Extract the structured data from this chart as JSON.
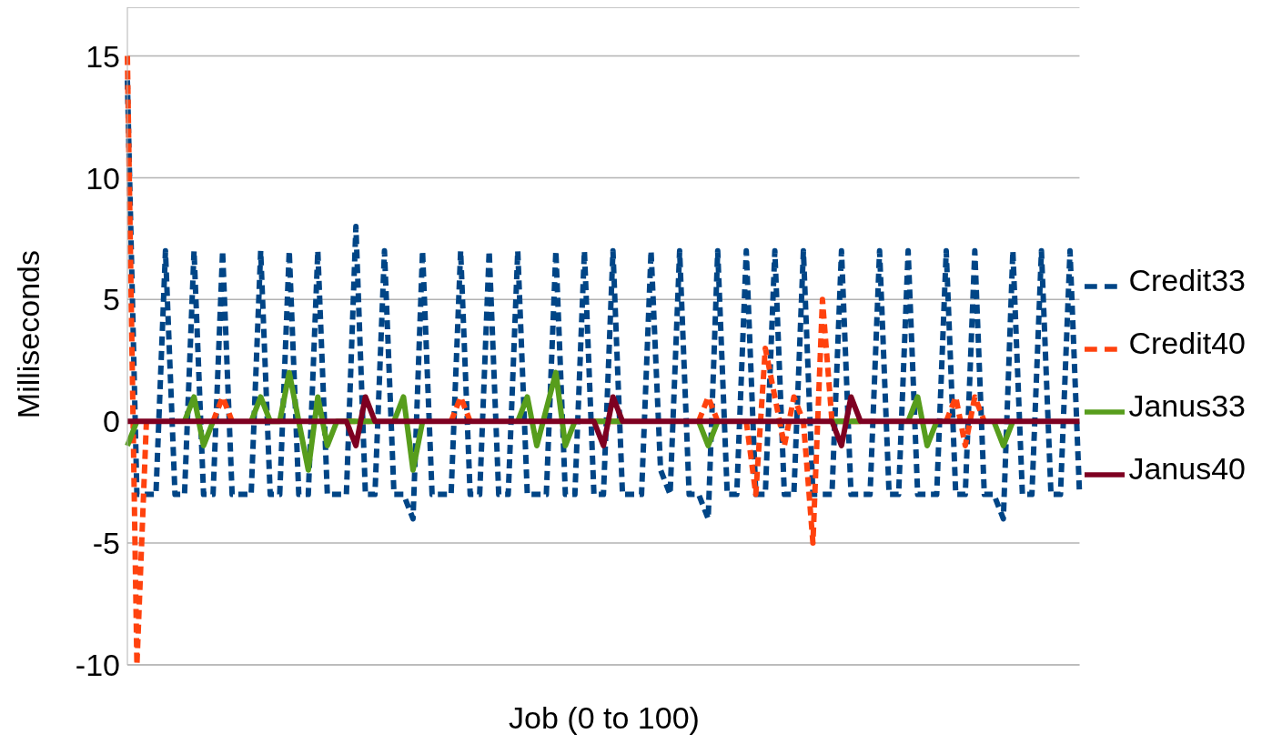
{
  "chart_data": {
    "type": "line",
    "xlabel": "Job (0 to 100)",
    "ylabel": "Milliseconds",
    "categories": [
      null,
      null,
      null,
      null,
      null,
      null,
      null,
      null,
      null,
      null,
      null,
      null,
      null,
      null,
      null,
      null,
      null,
      null,
      null,
      null,
      null,
      null,
      null,
      null,
      null,
      null,
      null,
      null,
      null,
      null,
      null,
      null,
      null,
      null,
      null,
      null,
      null,
      null,
      null,
      null,
      null,
      null,
      null,
      null,
      null,
      null,
      null,
      null,
      null,
      null,
      null,
      null,
      null,
      null,
      null,
      null,
      null,
      null,
      null,
      null,
      null,
      null,
      null,
      null,
      null,
      null,
      null,
      null,
      null,
      null,
      null,
      null,
      null,
      null,
      null,
      null,
      null,
      null,
      null,
      null,
      null,
      null,
      null,
      null,
      null,
      null,
      null,
      null,
      null,
      null,
      null,
      null,
      null,
      null,
      null,
      null,
      null,
      null,
      null,
      null,
      null
    ],
    "series": [
      {
        "name": "Credit33",
        "color": "#004586",
        "line_style": "dashed",
        "values": [
          14,
          -3,
          -3,
          -3,
          7,
          -3,
          -3,
          7,
          -3,
          -3,
          7,
          -3,
          -3,
          -3,
          7,
          -3,
          -3,
          7,
          -3,
          -3,
          7,
          -3,
          -3,
          -3,
          8,
          -3,
          -3,
          7,
          -3,
          -3,
          -4,
          7,
          -3,
          -3,
          -3,
          7,
          -3,
          -3,
          7,
          -3,
          -3,
          7,
          -3,
          -3,
          -3,
          7,
          -3,
          -3,
          7,
          -3,
          -3,
          7,
          -3,
          -3,
          -3,
          7,
          -2,
          -3,
          7,
          -3,
          -3,
          -4,
          7,
          -3,
          -3,
          7,
          -3,
          -3,
          7,
          -3,
          -3,
          7,
          -3,
          -3,
          -3,
          7,
          -3,
          -3,
          -3,
          7,
          -3,
          -3,
          7,
          -3,
          -3,
          -3,
          7,
          -3,
          -3,
          7,
          -3,
          -3,
          -4,
          7,
          -3,
          -3,
          7,
          -3,
          -3,
          7,
          -3
        ]
      },
      {
        "name": "Credit40",
        "color": "#ff420e",
        "line_style": "dashed",
        "values": [
          15,
          -10,
          0,
          null,
          null,
          null,
          null,
          null,
          null,
          0,
          1,
          0,
          null,
          null,
          null,
          null,
          null,
          null,
          null,
          null,
          null,
          null,
          null,
          0,
          0,
          0,
          0,
          null,
          null,
          null,
          null,
          null,
          null,
          null,
          0,
          1,
          0,
          null,
          null,
          null,
          null,
          null,
          null,
          null,
          null,
          null,
          null,
          null,
          null,
          0,
          0,
          0,
          0,
          null,
          null,
          null,
          null,
          null,
          null,
          null,
          0,
          1,
          0,
          null,
          null,
          0,
          -3,
          3,
          1,
          -1,
          1,
          0,
          -5,
          5,
          0,
          0,
          0,
          0,
          null,
          null,
          null,
          null,
          null,
          null,
          null,
          null,
          0,
          1,
          -1,
          1,
          0,
          null,
          null,
          null,
          null,
          null,
          null,
          null,
          null,
          null,
          null
        ]
      },
      {
        "name": "Janus33",
        "color": "#579d1c",
        "line_style": "solid",
        "values": [
          -1,
          0,
          null,
          null,
          null,
          null,
          0,
          1,
          -1,
          0,
          null,
          null,
          null,
          0,
          1,
          0,
          0,
          2,
          0,
          -2,
          1,
          -1,
          0,
          0,
          0,
          0,
          0,
          null,
          0,
          1,
          -2,
          0,
          null,
          null,
          null,
          null,
          null,
          null,
          null,
          null,
          null,
          0,
          1,
          -1,
          0.5,
          2,
          -1,
          0,
          null,
          0,
          0,
          0,
          0,
          null,
          null,
          null,
          null,
          null,
          null,
          null,
          0,
          -1,
          0,
          null,
          null,
          null,
          null,
          null,
          null,
          null,
          null,
          null,
          null,
          null,
          0,
          0,
          0,
          0,
          null,
          null,
          null,
          null,
          0,
          1,
          -1,
          0,
          null,
          null,
          null,
          null,
          null,
          0,
          -1,
          0,
          null,
          null,
          null,
          null,
          null,
          null,
          null
        ]
      },
      {
        "name": "Janus40",
        "color": "#7e0021",
        "line_style": "solid",
        "values": [
          0,
          0,
          0,
          0,
          0,
          0,
          0,
          0,
          0,
          0,
          0,
          0,
          0,
          0,
          0,
          0,
          0,
          0,
          0,
          0,
          0,
          0,
          0,
          0,
          -1,
          1,
          0,
          0,
          0,
          0,
          0,
          0,
          0,
          0,
          0,
          0,
          0,
          0,
          0,
          0,
          0,
          0,
          0,
          0,
          0,
          0,
          0,
          0,
          0,
          0,
          -1,
          1,
          0,
          0,
          0,
          0,
          0,
          0,
          0,
          0,
          0,
          0,
          0,
          0,
          0,
          0,
          0,
          0,
          0,
          0,
          0,
          0,
          0,
          0,
          0,
          -1,
          1,
          0,
          0,
          0,
          0,
          0,
          0,
          0,
          0,
          0,
          0,
          0,
          0,
          0,
          0,
          0,
          0,
          0,
          0,
          0,
          0,
          0,
          0,
          0,
          0
        ]
      }
    ],
    "ylim": [
      -10,
      17
    ],
    "yticks": [
      -10,
      -5,
      0,
      5,
      10,
      15
    ],
    "grid": "y",
    "legend": "right"
  }
}
